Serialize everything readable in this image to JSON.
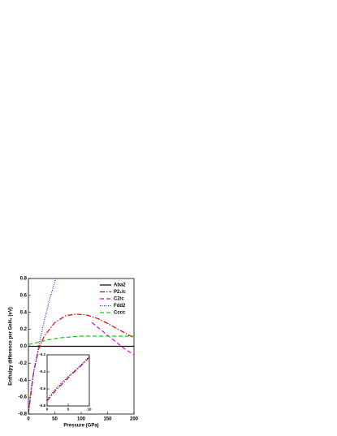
{
  "chart_data": [
    {
      "type": "line",
      "xlabel": "Pressure (GPa)",
      "ylabel": "Enthalpy difference per GeH₄ (eV)",
      "xlim": [
        0,
        200
      ],
      "xticks": [
        0,
        50,
        100,
        150,
        200
      ],
      "ylim": [
        -0.8,
        0.8
      ],
      "yticks": [
        -0.8,
        -0.6,
        -0.4,
        -0.2,
        {
          "value": 0,
          "label": "0.0"
        },
        0.2,
        0.4,
        0.6,
        0.8
      ],
      "legend": "top-right",
      "series": [
        {
          "name": "Aba2",
          "color": "#000000",
          "style": "solid",
          "x": [
            0,
            200
          ],
          "values": [
            0,
            0
          ]
        },
        {
          "name": "P2₁/c",
          "color": "#e00000",
          "style": "dashdot",
          "x": [
            0,
            10,
            20,
            30,
            50,
            70,
            90,
            110,
            130,
            150,
            170,
            200
          ],
          "values": [
            -0.8,
            -0.3,
            -0.02,
            0.12,
            0.28,
            0.36,
            0.38,
            0.37,
            0.33,
            0.27,
            0.2,
            0.1
          ]
        },
        {
          "name": "C2/c",
          "color": "#e000e0",
          "style": "dashed",
          "x": [
            120,
            140,
            160,
            180,
            200
          ],
          "values": [
            0.28,
            0.18,
            0.08,
            -0.02,
            -0.1
          ]
        },
        {
          "name": "Fdd2",
          "color": "#2020e0",
          "style": "dotted",
          "x": [
            0,
            5,
            10,
            20,
            30,
            40,
            52
          ],
          "values": [
            -0.8,
            -0.5,
            -0.3,
            0.02,
            0.3,
            0.55,
            0.8
          ]
        },
        {
          "name": "Cccc",
          "color": "#20c020",
          "style": "dashed",
          "x": [
            0,
            20,
            40,
            60,
            80,
            100,
            150,
            200
          ],
          "values": [
            0.02,
            0.05,
            0.08,
            0.1,
            0.11,
            0.12,
            0.12,
            0.12
          ]
        }
      ]
    },
    {
      "type": "line",
      "xlim": [
        0,
        10
      ],
      "xticks": [
        0,
        5,
        10
      ],
      "ylim": [
        -0.8,
        -0.2
      ],
      "yticks": [
        -0.8,
        -0.6,
        -0.4,
        -0.2
      ],
      "series": [
        {
          "color": "#e00000",
          "style": "dashdot",
          "x": [
            0,
            2,
            4,
            6,
            8,
            10
          ],
          "values": [
            -0.74,
            -0.62,
            -0.52,
            -0.42,
            -0.33,
            -0.23
          ]
        },
        {
          "color": "#2020e0",
          "style": "dotted",
          "x": [
            0,
            2,
            4,
            6,
            8,
            10
          ],
          "values": [
            -0.72,
            -0.6,
            -0.5,
            -0.41,
            -0.32,
            -0.22
          ]
        }
      ]
    }
  ]
}
